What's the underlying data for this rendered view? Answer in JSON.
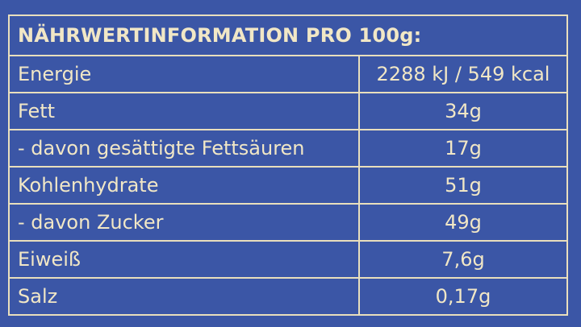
{
  "header": {
    "title": "NÄHRWERTINFORMATION PRO 100g:"
  },
  "table": {
    "rows": [
      [
        "Energie",
        "2288 kJ / 549 kcal"
      ],
      [
        "Fett",
        "34g"
      ],
      [
        "- davon gesättigte Fettsäuren",
        "17g"
      ],
      [
        "Kohlenhydrate",
        "51g"
      ],
      [
        "- davon Zucker",
        "49g"
      ],
      [
        "Eiweiß",
        "7,6g"
      ],
      [
        "Salz",
        "0,17g"
      ]
    ]
  }
}
